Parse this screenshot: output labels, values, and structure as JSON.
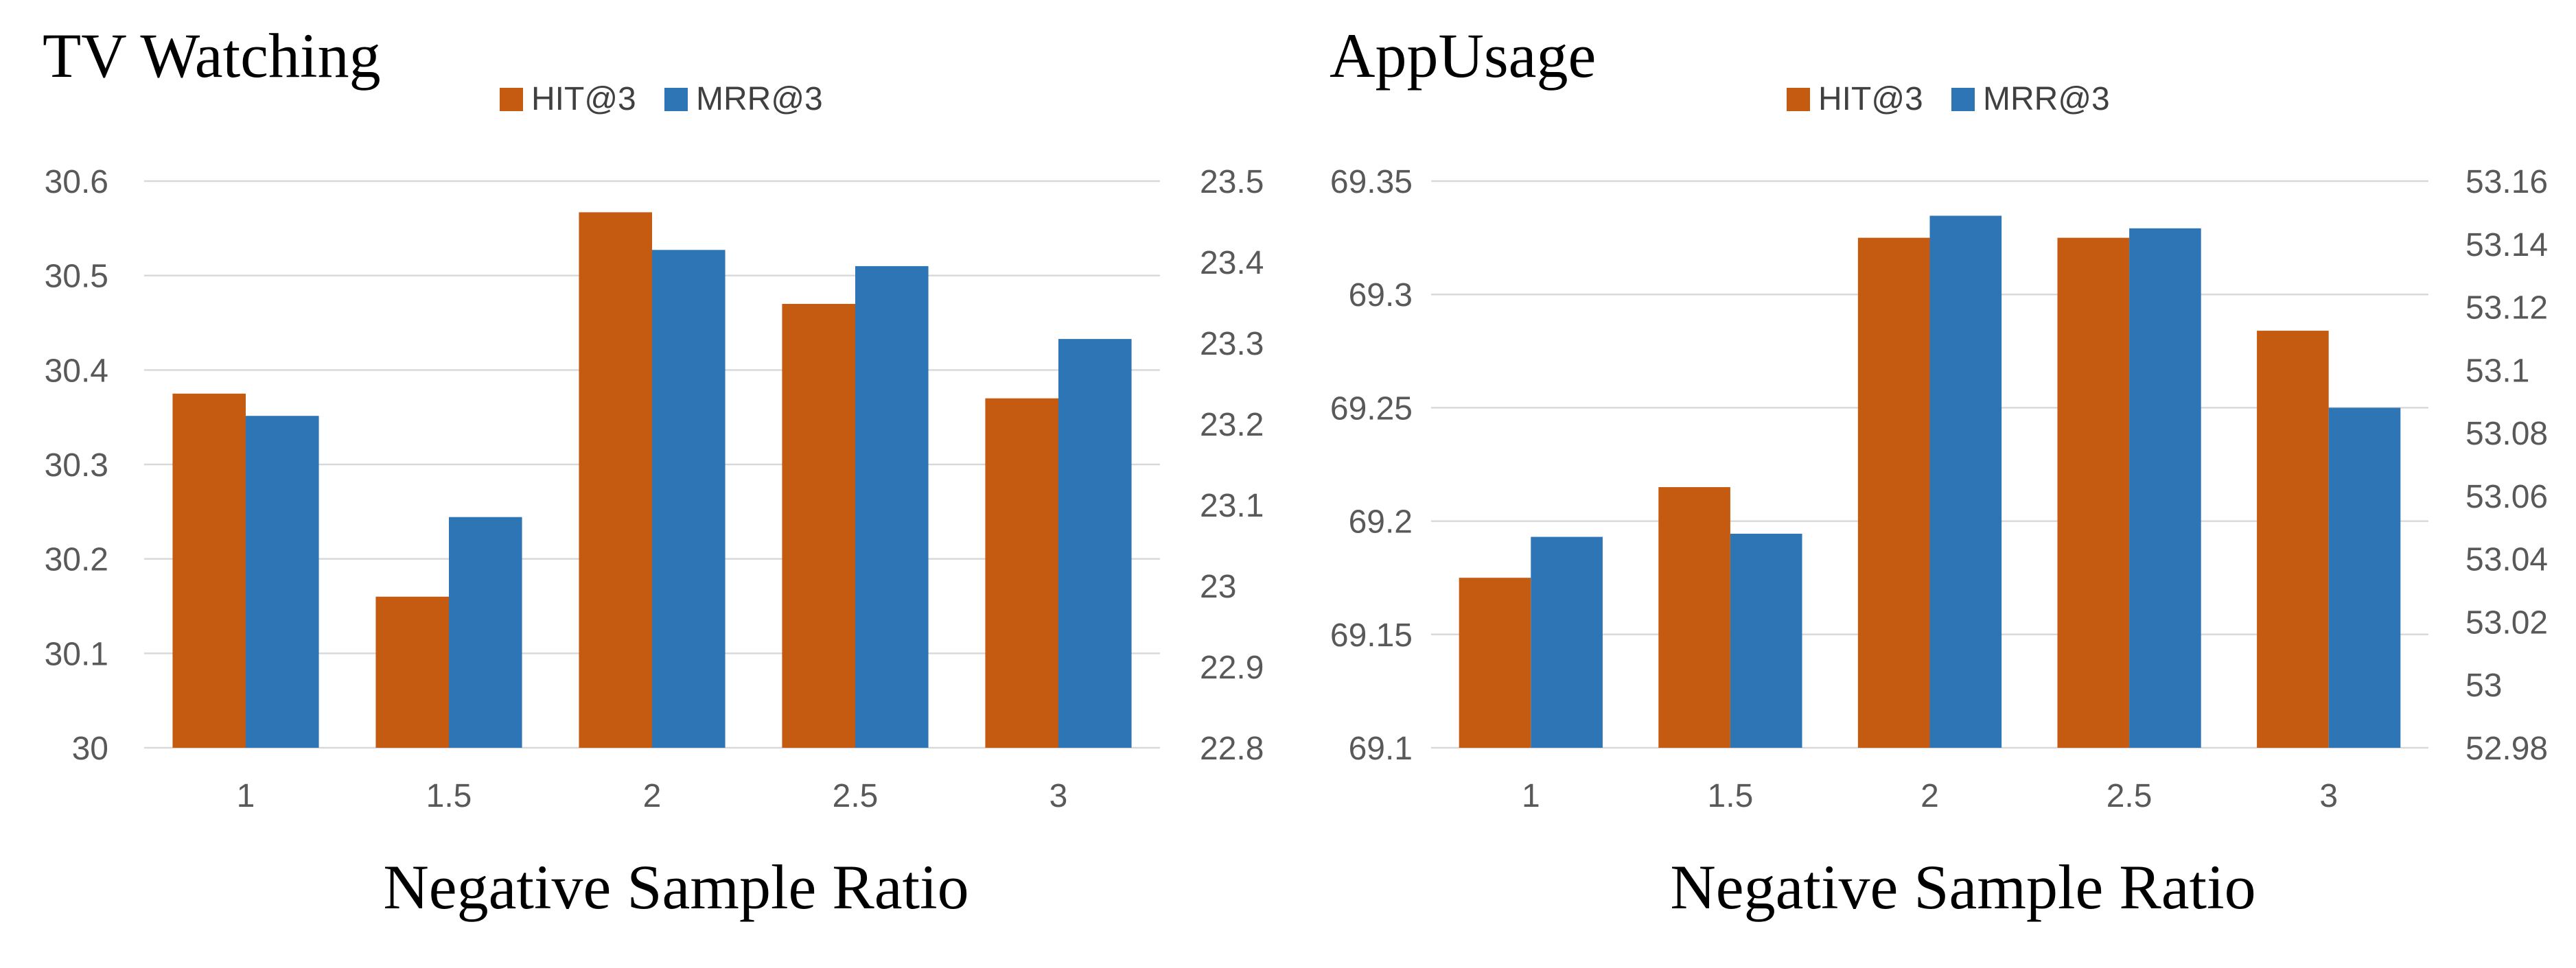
{
  "chart_data": [
    {
      "type": "bar",
      "title": "TV Watching",
      "xlabel": "Negative Sample Ratio",
      "categories": [
        "1",
        "1.5",
        "2",
        "2.5",
        "3"
      ],
      "series": [
        {
          "name": "HIT@3",
          "axis": "left",
          "color": "#c55a11",
          "values": [
            30.375,
            30.16,
            30.567,
            30.47,
            30.37
          ]
        },
        {
          "name": "MRR@3",
          "axis": "right",
          "color": "#2e75b6",
          "values": [
            23.21,
            23.085,
            23.415,
            23.395,
            23.305
          ]
        }
      ],
      "y_left": {
        "min": 30,
        "max": 30.6,
        "ticks": [
          "30",
          "30.1",
          "30.2",
          "30.3",
          "30.4",
          "30.5",
          "30.6"
        ]
      },
      "y_right": {
        "min": 22.8,
        "max": 23.5,
        "ticks": [
          "22.8",
          "22.9",
          "23",
          "23.1",
          "23.2",
          "23.3",
          "23.4",
          "23.5"
        ]
      },
      "grid": true,
      "legend_position": "top-center"
    },
    {
      "type": "bar",
      "title": "AppUsage",
      "xlabel": "Negative Sample Ratio",
      "categories": [
        "1",
        "1.5",
        "2",
        "2.5",
        "3"
      ],
      "series": [
        {
          "name": "HIT@3",
          "axis": "left",
          "color": "#c55a11",
          "values": [
            69.175,
            69.215,
            69.325,
            69.325,
            69.284
          ]
        },
        {
          "name": "MRR@3",
          "axis": "right",
          "color": "#2e75b6",
          "values": [
            53.047,
            53.048,
            53.149,
            53.145,
            53.088
          ]
        }
      ],
      "y_left": {
        "min": 69.1,
        "max": 69.35,
        "ticks": [
          "69.1",
          "69.15",
          "69.2",
          "69.25",
          "69.3",
          "69.35"
        ]
      },
      "y_right": {
        "min": 52.98,
        "max": 53.16,
        "ticks": [
          "52.98",
          "53",
          "53.02",
          "53.04",
          "53.06",
          "53.08",
          "53.1",
          "53.12",
          "53.14",
          "53.16"
        ]
      },
      "grid": true,
      "legend_position": "top-center"
    }
  ],
  "colors": {
    "hit": "#c55a11",
    "mrr": "#2e75b6",
    "grid": "#d9d9d9"
  }
}
